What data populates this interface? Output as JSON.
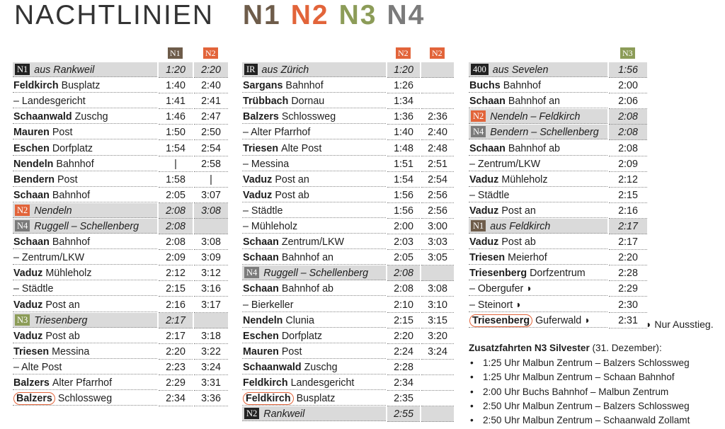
{
  "title": {
    "text": "NACHTLINIEN",
    "lines": [
      {
        "name": "N1",
        "color": "#6e5c4a"
      },
      {
        "name": "N2",
        "color": "#e2643a"
      },
      {
        "name": "N3",
        "color": "#8c9c58"
      },
      {
        "name": "N4",
        "color": "#7b7b7b"
      }
    ]
  },
  "tables": [
    {
      "columns": [
        {
          "name": "N1",
          "color": "#6e5c4a"
        },
        {
          "name": "N2",
          "color": "#e2643a"
        }
      ],
      "rows": [
        {
          "badge": "N1",
          "color": "#222222",
          "stop": "aus Rankweil",
          "times": [
            "1:20",
            "2:20"
          ]
        },
        {
          "place": "Feldkirch",
          "detail": "Busplatz",
          "times": [
            "1:40",
            "2:40"
          ]
        },
        {
          "detail": "– Landesgericht",
          "times": [
            "1:41",
            "2:41"
          ]
        },
        {
          "place": "Schaanwald",
          "detail": "Zuschg",
          "times": [
            "1:46",
            "2:47"
          ]
        },
        {
          "place": "Mauren",
          "detail": "Post",
          "times": [
            "1:50",
            "2:50"
          ]
        },
        {
          "place": "Eschen",
          "detail": "Dorfplatz",
          "times": [
            "1:54",
            "2:54"
          ]
        },
        {
          "place": "Nendeln",
          "detail": "Bahnhof",
          "times": [
            "|",
            "2:58"
          ]
        },
        {
          "place": "Bendern",
          "detail": "Post",
          "times": [
            "1:58",
            "|"
          ]
        },
        {
          "place": "Schaan",
          "detail": "Bahnhof",
          "times": [
            "2:05",
            "3:07"
          ]
        },
        {
          "badge": "N2",
          "color": "#e2643a",
          "stop": "Nendeln",
          "times": [
            "2:08",
            "3:08"
          ]
        },
        {
          "badge": "N4",
          "color": "#7b7b7b",
          "stop": "Ruggell – Schellenberg",
          "times": [
            "2:08"
          ]
        },
        {
          "place": "Schaan",
          "detail": "Bahnhof",
          "times": [
            "2:08",
            "3:08"
          ]
        },
        {
          "detail": "– Zentrum/LKW",
          "times": [
            "2:09",
            "3:09"
          ]
        },
        {
          "place": "Vaduz",
          "detail": "Mühleholz",
          "times": [
            "2:12",
            "3:12"
          ]
        },
        {
          "detail": "– Städtle",
          "times": [
            "2:15",
            "3:16"
          ]
        },
        {
          "place": "Vaduz",
          "detail": "Post an",
          "times": [
            "2:16",
            "3:17"
          ]
        },
        {
          "badge": "N3",
          "color": "#8c9c58",
          "stop": "Triesenberg",
          "times": [
            "2:17"
          ]
        },
        {
          "place": "Vaduz",
          "detail": "Post ab",
          "times": [
            "2:17",
            "3:18"
          ]
        },
        {
          "place": "Triesen",
          "detail": "Messina",
          "times": [
            "2:20",
            "3:22"
          ]
        },
        {
          "detail": "– Alte Post",
          "times": [
            "2:23",
            "3:24"
          ]
        },
        {
          "place": "Balzers",
          "detail": "Alter Pfarrhof",
          "times": [
            "2:29",
            "3:31"
          ]
        },
        {
          "boxed": "Balzers",
          "detail": "Schlossweg",
          "times": [
            "2:34",
            "3:36"
          ]
        }
      ]
    },
    {
      "columns": [
        {
          "name": "N2",
          "color": "#e2643a"
        },
        {
          "name": "N2",
          "color": "#e2643a"
        }
      ],
      "rows": [
        {
          "badge": "IR",
          "color": "#222222",
          "stop": "aus Zürich",
          "times": [
            "1:20"
          ]
        },
        {
          "place": "Sargans",
          "detail": "Bahnhof",
          "times": [
            "1:26"
          ]
        },
        {
          "place": "Trübbach",
          "detail": "Dornau",
          "times": [
            "1:34"
          ]
        },
        {
          "place": "Balzers",
          "detail": "Schlossweg",
          "times": [
            "1:36",
            "2:36"
          ]
        },
        {
          "detail": "– Alter Pfarrhof",
          "times": [
            "1:40",
            "2:40"
          ]
        },
        {
          "place": "Triesen",
          "detail": "Alte Post",
          "times": [
            "1:48",
            "2:48"
          ]
        },
        {
          "detail": "– Messina",
          "times": [
            "1:51",
            "2:51"
          ]
        },
        {
          "place": "Vaduz",
          "detail": "Post an",
          "times": [
            "1:54",
            "2:54"
          ]
        },
        {
          "place": "Vaduz",
          "detail": "Post ab",
          "times": [
            "1:56",
            "2:56"
          ]
        },
        {
          "detail": "– Städtle",
          "times": [
            "1:56",
            "2:56"
          ]
        },
        {
          "detail": "– Mühleholz",
          "times": [
            "2:00",
            "3:00"
          ]
        },
        {
          "place": "Schaan",
          "detail": "Zentrum/LKW",
          "times": [
            "2:03",
            "3:03"
          ]
        },
        {
          "place": "Schaan",
          "detail": "Bahnhof an",
          "times": [
            "2:05",
            "3:05"
          ]
        },
        {
          "badge": "N4",
          "color": "#7b7b7b",
          "stop": "Ruggell – Schellenberg",
          "times": [
            "2:08"
          ]
        },
        {
          "place": "Schaan",
          "detail": "Bahnhof ab",
          "times": [
            "2:08",
            "3:08"
          ]
        },
        {
          "detail": "– Bierkeller",
          "times": [
            "2:10",
            "3:10"
          ]
        },
        {
          "place": "Nendeln",
          "detail": "Clunia",
          "times": [
            "2:15",
            "3:15"
          ]
        },
        {
          "place": "Eschen",
          "detail": "Dorfplatz",
          "times": [
            "2:20",
            "3:20"
          ]
        },
        {
          "place": "Mauren",
          "detail": "Post",
          "times": [
            "2:24",
            "3:24"
          ]
        },
        {
          "place": "Schaanwald",
          "detail": "Zuschg",
          "times": [
            "2:28"
          ]
        },
        {
          "place": "Feldkirch",
          "detail": "Landesgericht",
          "times": [
            "2:34"
          ]
        },
        {
          "boxed": "Feldkirch",
          "detail": "Busplatz",
          "times": [
            "2:35"
          ]
        },
        {
          "badge": "N2",
          "color": "#222222",
          "stop": "Rankweil",
          "times": [
            "2:55"
          ]
        }
      ]
    },
    {
      "columns": [
        {
          "name": "N3",
          "color": "#8c9c58"
        }
      ],
      "rows": [
        {
          "badge": "400",
          "color": "#222222",
          "stop": "aus Sevelen",
          "times": [
            "1:56"
          ]
        },
        {
          "place": "Buchs",
          "detail": "Bahnhof",
          "times": [
            "2:00"
          ]
        },
        {
          "place": "Schaan",
          "detail": "Bahnhof an",
          "times": [
            "2:06"
          ]
        },
        {
          "badge": "N2",
          "color": "#e2643a",
          "stop": "Nendeln – Feldkirch",
          "times": [
            "2:08"
          ]
        },
        {
          "badge": "N4",
          "color": "#7b7b7b",
          "stop": "Bendern – Schellenberg",
          "times": [
            "2:08"
          ]
        },
        {
          "place": "Schaan",
          "detail": "Bahnhof ab",
          "times": [
            "2:08"
          ]
        },
        {
          "detail": "– Zentrum/LKW",
          "times": [
            "2:09"
          ]
        },
        {
          "place": "Vaduz",
          "detail": "Mühleholz",
          "times": [
            "2:12"
          ]
        },
        {
          "detail": "– Städtle",
          "times": [
            "2:15"
          ]
        },
        {
          "place": "Vaduz",
          "detail": "Post an",
          "times": [
            "2:16"
          ]
        },
        {
          "badge": "N1",
          "color": "#6e5c4a",
          "stop": "aus Feldkirch",
          "times": [
            "2:17"
          ]
        },
        {
          "place": "Vaduz",
          "detail": "Post ab",
          "times": [
            "2:17"
          ]
        },
        {
          "place": "Triesen",
          "detail": "Meierhof",
          "times": [
            "2:20"
          ]
        },
        {
          "place": "Triesenberg",
          "detail": "Dorfzentrum",
          "times": [
            "2:28"
          ]
        },
        {
          "detail": "– Obergufer ◗",
          "times": [
            "2:29"
          ]
        },
        {
          "detail": "– Steinort ◗",
          "times": [
            "2:30"
          ]
        },
        {
          "boxed": "Triesenberg",
          "detail": "Guferwald ◗",
          "times": [
            "2:31"
          ]
        }
      ]
    }
  ],
  "note": "◗ Nur Ausstieg.",
  "extra": {
    "title": "Zusatzfahrten N3 Silvester",
    "subtitle": "(31. Dezember):",
    "items": [
      "1:25 Uhr Malbun Zentrum – Balzers Schlossweg",
      "1:25 Uhr Malbun Zentrum – Schaan Bahnhof",
      "2:00 Uhr Buchs Bahnhof – Malbun Zentrum",
      "2:50 Uhr Malbun Zentrum – Balzers Schlossweg",
      "2:50 Uhr Malbun Zentrum – Schaanwald Zollamt"
    ]
  }
}
